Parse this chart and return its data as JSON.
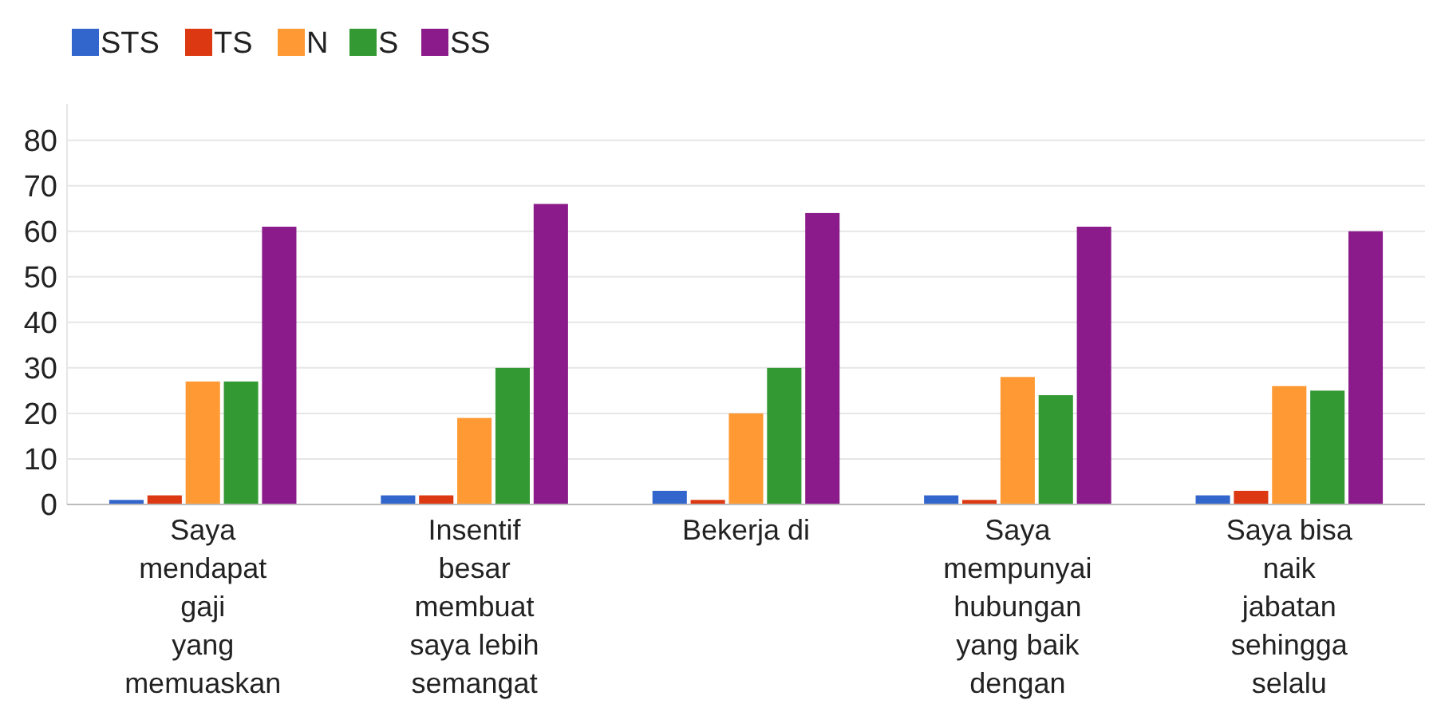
{
  "chart_data": {
    "type": "bar",
    "categories": [
      "Saya\nmendapat\ngaji\nyang\nmemuaskan",
      "Insentif\nbesar\nmembuat\nsaya lebih\nsemangat",
      "Bekerja di",
      "Saya\nmempunyai\nhubungan\nyang baik\ndengan",
      "Saya bisa\nnaik\njabatan\nsehingga\nselalu"
    ],
    "series": [
      {
        "name": "STS",
        "color": "#3366cc",
        "values": [
          1,
          2,
          3,
          2,
          2
        ]
      },
      {
        "name": "TS",
        "color": "#dc3912",
        "values": [
          2,
          2,
          1,
          1,
          3
        ]
      },
      {
        "name": "N",
        "color": "#ff9933",
        "values": [
          27,
          19,
          20,
          28,
          26
        ]
      },
      {
        "name": "S",
        "color": "#339933",
        "values": [
          27,
          30,
          30,
          24,
          25
        ]
      },
      {
        "name": "SS",
        "color": "#8b1a8b",
        "values": [
          61,
          66,
          64,
          61,
          60
        ]
      }
    ],
    "ylim": [
      0,
      88
    ],
    "yticks": [
      0,
      10,
      20,
      30,
      40,
      50,
      60,
      70,
      80
    ],
    "grid": "y",
    "legend": "top left"
  }
}
